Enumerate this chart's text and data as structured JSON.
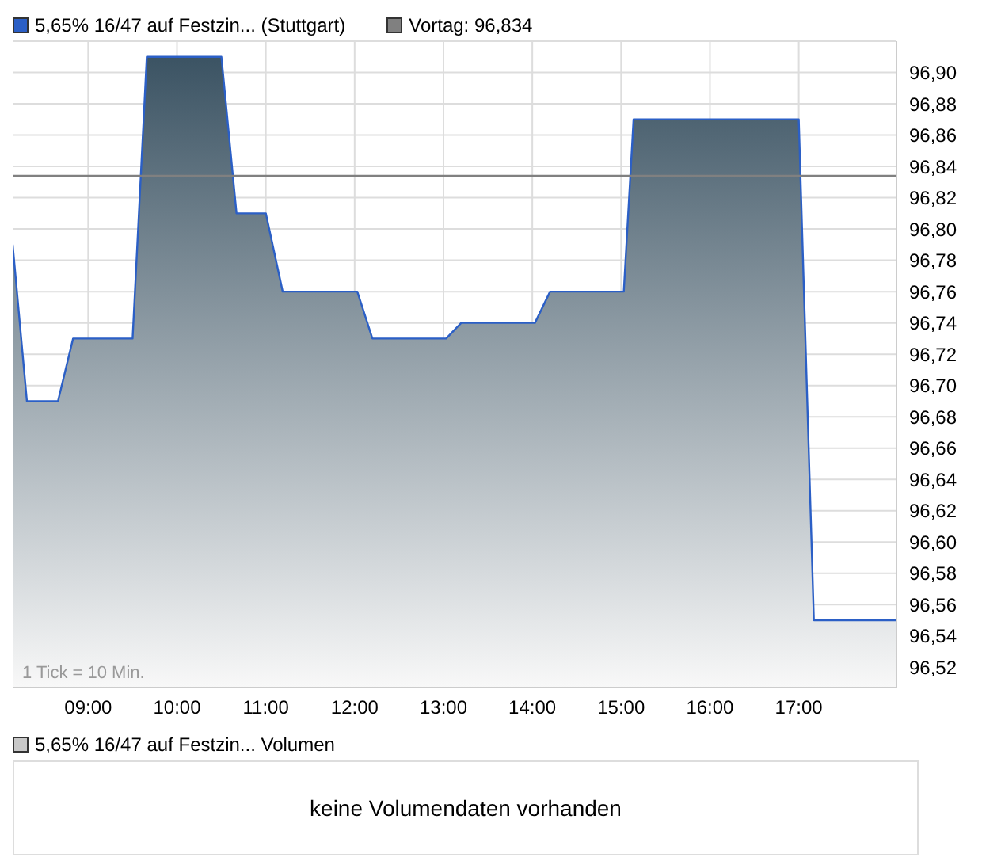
{
  "chart_data": [
    {
      "type": "area",
      "x": [
        8.15,
        8.31,
        8.66,
        8.83,
        9.5,
        9.66,
        10.5,
        10.67,
        11.0,
        11.19,
        12.03,
        12.2,
        13.03,
        13.2,
        14.03,
        14.2,
        15.03,
        15.14,
        17.0,
        17.17,
        18.1
      ],
      "series": [
        {
          "name": "5,65% 16/47 auf Festzin... (Stuttgart)",
          "color": "#2b5fc6",
          "values": [
            96.79,
            96.69,
            96.69,
            96.73,
            96.73,
            96.91,
            96.91,
            96.81,
            96.81,
            96.76,
            96.76,
            96.73,
            96.73,
            96.74,
            96.74,
            96.76,
            96.76,
            96.87,
            96.87,
            96.55,
            96.55
          ]
        }
      ],
      "xlim": [
        8.15,
        18.1
      ],
      "xticks": [
        {
          "value": 9,
          "label": "09:00"
        },
        {
          "value": 10,
          "label": "10:00"
        },
        {
          "value": 11,
          "label": "11:00"
        },
        {
          "value": 12,
          "label": "12:00"
        },
        {
          "value": 13,
          "label": "13:00"
        },
        {
          "value": 14,
          "label": "14:00"
        },
        {
          "value": 15,
          "label": "15:00"
        },
        {
          "value": 16,
          "label": "16:00"
        },
        {
          "value": 17,
          "label": "17:00"
        }
      ],
      "ylim": [
        96.507,
        96.92
      ],
      "yticks": [
        {
          "value": 96.52,
          "label": "96,52"
        },
        {
          "value": 96.54,
          "label": "96,54"
        },
        {
          "value": 96.56,
          "label": "96,56"
        },
        {
          "value": 96.58,
          "label": "96,58"
        },
        {
          "value": 96.6,
          "label": "96,60"
        },
        {
          "value": 96.62,
          "label": "96,62"
        },
        {
          "value": 96.64,
          "label": "96,64"
        },
        {
          "value": 96.66,
          "label": "96,66"
        },
        {
          "value": 96.68,
          "label": "96,68"
        },
        {
          "value": 96.7,
          "label": "96,70"
        },
        {
          "value": 96.72,
          "label": "96,72"
        },
        {
          "value": 96.74,
          "label": "96,74"
        },
        {
          "value": 96.76,
          "label": "96,76"
        },
        {
          "value": 96.78,
          "label": "96,78"
        },
        {
          "value": 96.8,
          "label": "96,80"
        },
        {
          "value": 96.82,
          "label": "96,82"
        },
        {
          "value": 96.84,
          "label": "96,84"
        },
        {
          "value": 96.86,
          "label": "96,86"
        },
        {
          "value": 96.88,
          "label": "96,88"
        },
        {
          "value": 96.9,
          "label": "96,90"
        }
      ],
      "ref_lines": [
        {
          "axis": "y",
          "value": 96.834,
          "label": "Vortag: 96,834",
          "color": "#808080"
        }
      ],
      "annotations": [
        "1 Tick = 10 Min."
      ],
      "grid": true,
      "legend": "top left"
    },
    {
      "type": "other",
      "title": "5,65% 16/47 auf Festzin... Volumen",
      "annotations": [
        "keine Volumendaten vorhanden"
      ]
    }
  ]
}
